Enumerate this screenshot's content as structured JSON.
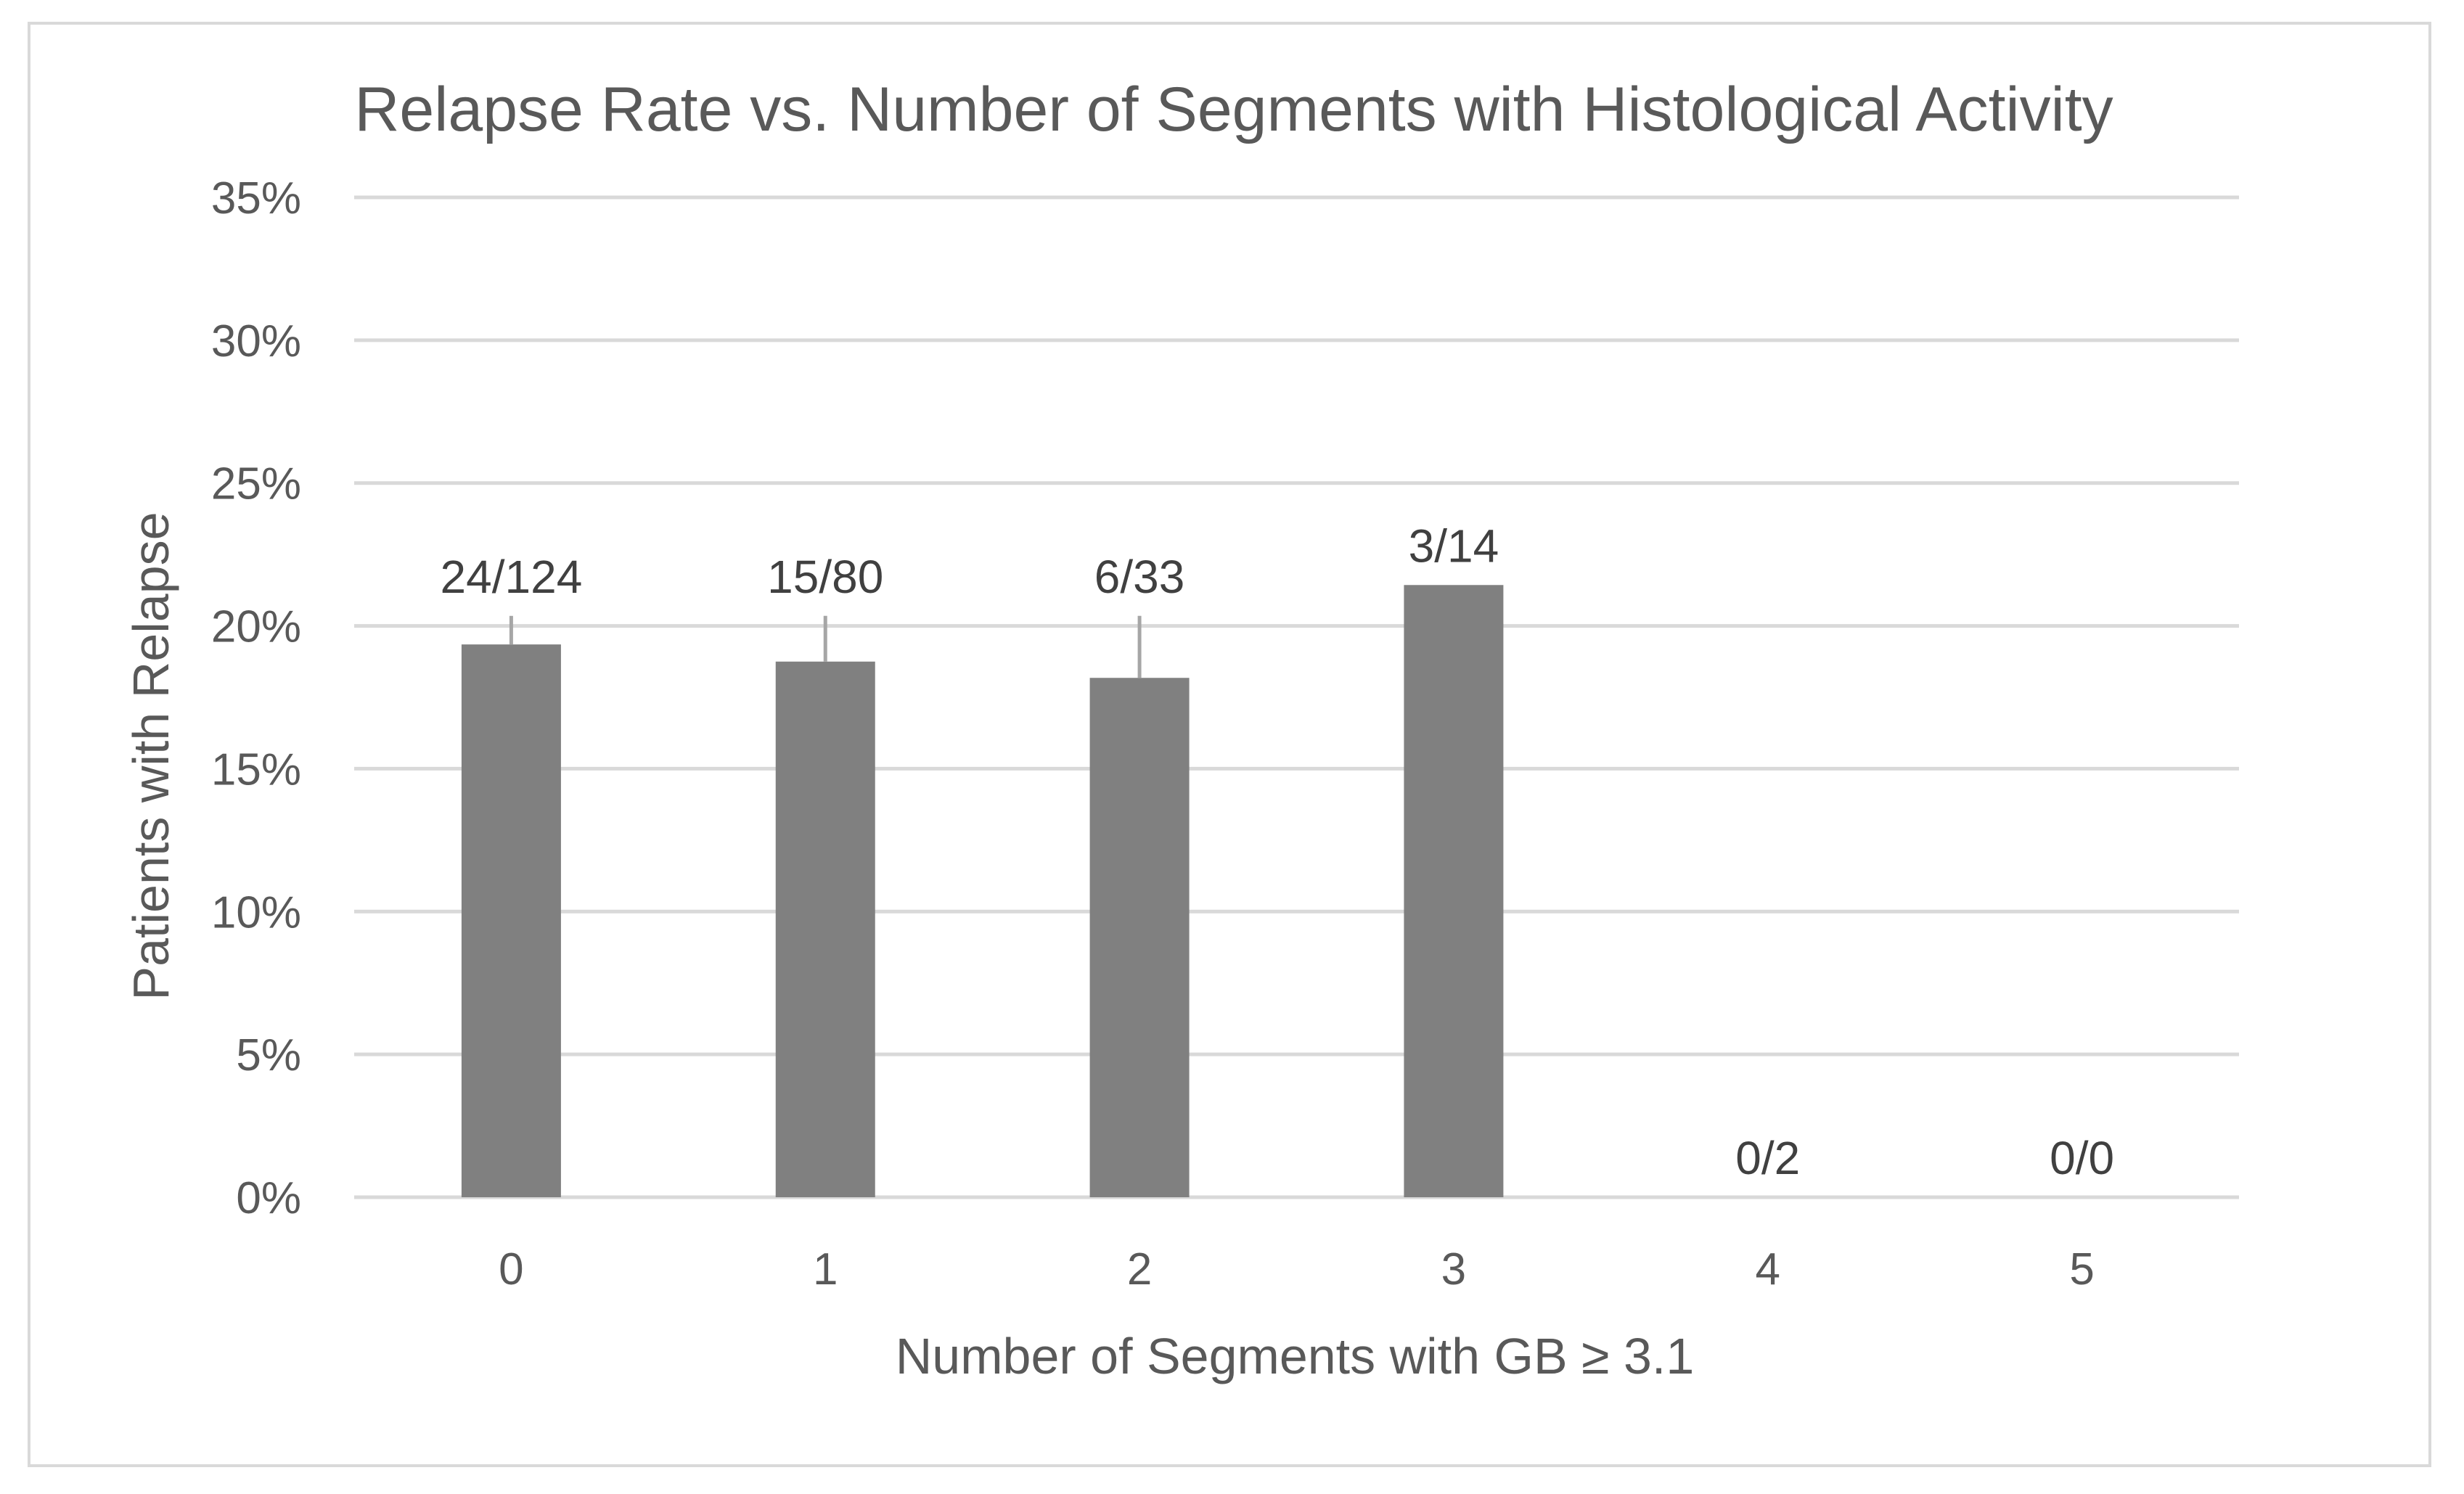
{
  "chart_data": {
    "type": "bar",
    "title": "Relapse Rate vs. Number of Segments with Histological Activity",
    "xlabel": "Number of Segments with GB ≥ 3.1",
    "ylabel": "Patients with Relapse",
    "categories": [
      "0",
      "1",
      "2",
      "3",
      "4",
      "5"
    ],
    "values": [
      0.1935,
      0.1875,
      0.1818,
      0.2143,
      0,
      0
    ],
    "error_bars_upper": [
      0.2035,
      0.2035,
      0.2035,
      null,
      null,
      null
    ],
    "data_labels": [
      "24/124",
      "15/80",
      "6/33",
      "3/14",
      "0/2",
      "0/0"
    ],
    "ylim": [
      0,
      0.35
    ],
    "yticks": [
      0,
      0.05,
      0.1,
      0.15,
      0.2,
      0.25,
      0.3,
      0.35
    ],
    "ytick_labels": [
      "0%",
      "5%",
      "10%",
      "15%",
      "20%",
      "25%",
      "30%",
      "35%"
    ],
    "grid": true,
    "legend": "none",
    "colors": {
      "bar": "#808080",
      "error_bar": "#a6a6a6",
      "grid": "#d9d9d9",
      "text": "#595959"
    }
  }
}
